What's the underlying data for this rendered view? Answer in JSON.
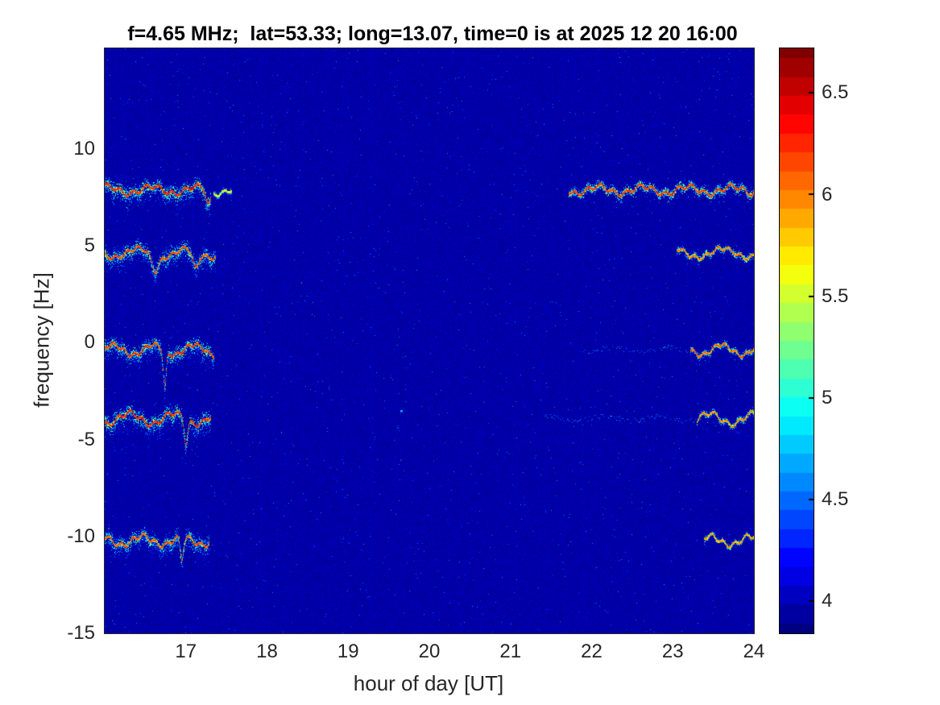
{
  "title": "f=4.65 MHz;  lat=53.33; long=13.07, time=0 is at 2025 12 20 16:00",
  "chart_data": {
    "type": "heatmap",
    "title": "f=4.65 MHz;  lat=53.33; long=13.07, time=0 is at 2025 12 20 16:00",
    "xlabel": "hour of day [UT]",
    "ylabel": "frequency [Hz]",
    "xlim": [
      16,
      24
    ],
    "ylim": [
      -15,
      15.2
    ],
    "x_ticks": [
      17,
      18,
      19,
      20,
      21,
      22,
      23,
      24
    ],
    "y_ticks": [
      10,
      5,
      0,
      -5,
      -10,
      -15
    ],
    "grid": false,
    "background_value": 3.95,
    "colorbar": {
      "position": "right",
      "colormap": "jet",
      "range": [
        3.84,
        6.72
      ],
      "ticks": [
        6.5,
        6,
        5.5,
        5,
        4.5,
        4
      ],
      "bands": 32
    },
    "traces": [
      {
        "label": "doppler-trace-plus8Hz",
        "base_freq": 7.9,
        "wiggle": {
          "a1": 0.2,
          "p1": 0.55,
          "ph1": 1.2,
          "a2": 0.12,
          "p2": 0.16,
          "ph2": 0.4
        },
        "dips": [
          {
            "t": 17.28,
            "depth": 0.7,
            "width": 0.04
          }
        ],
        "segments": [
          {
            "t0": 16.0,
            "t1": 17.3,
            "strength": 6.5,
            "spread": 0.55,
            "down_bias": 0.5
          },
          {
            "t0": 17.34,
            "t1": 17.56,
            "strength": 5.9,
            "spread": 0.3,
            "down_bias": 0.2
          },
          {
            "t0": 21.72,
            "t1": 24.0,
            "strength": 6.45,
            "spread": 0.35,
            "down_bias": 0.1
          }
        ]
      },
      {
        "label": "doppler-trace-plus4p6Hz",
        "base_freq": 4.65,
        "wiggle": {
          "a1": 0.25,
          "p1": 0.6,
          "ph1": 3.5,
          "a2": 0.1,
          "p2": 0.14,
          "ph2": 1.9
        },
        "dips": [
          {
            "t": 16.62,
            "depth": 0.8,
            "width": 0.06
          },
          {
            "t": 17.12,
            "depth": 0.9,
            "width": 0.05
          }
        ],
        "segments": [
          {
            "t0": 16.0,
            "t1": 17.36,
            "strength": 6.4,
            "spread": 0.6,
            "down_bias": 0.6
          },
          {
            "t0": 23.05,
            "t1": 24.0,
            "strength": 6.25,
            "spread": 0.25,
            "down_bias": 0.1
          }
        ]
      },
      {
        "label": "doppler-trace-0Hz",
        "base_freq": -0.35,
        "wiggle": {
          "a1": 0.28,
          "p1": 0.5,
          "ph1": 0.3,
          "a2": 0.1,
          "p2": 0.13,
          "ph2": 2.6
        },
        "dips": [
          {
            "t": 16.74,
            "depth": 1.9,
            "width": 0.025
          }
        ],
        "segments": [
          {
            "t0": 16.0,
            "t1": 17.34,
            "strength": 6.45,
            "spread": 0.55,
            "down_bias": 0.5
          },
          {
            "t0": 23.22,
            "t1": 24.0,
            "strength": 6.3,
            "spread": 0.25,
            "down_bias": 0.1
          }
        ],
        "faint_segments": [
          {
            "t0": 21.9,
            "t1": 23.2,
            "value": 4.5
          }
        ]
      },
      {
        "label": "doppler-trace-minus4Hz",
        "base_freq": -3.9,
        "wiggle": {
          "a1": 0.3,
          "p1": 0.55,
          "ph1": 4.4,
          "a2": 0.12,
          "p2": 0.15,
          "ph2": 0.9
        },
        "dips": [
          {
            "t": 17.0,
            "depth": 1.2,
            "width": 0.03
          }
        ],
        "segments": [
          {
            "t0": 16.0,
            "t1": 17.3,
            "strength": 6.5,
            "spread": 0.65,
            "down_bias": 0.6
          },
          {
            "t0": 23.3,
            "t1": 24.0,
            "strength": 6.2,
            "spread": 0.25,
            "down_bias": 0.1
          }
        ],
        "faint_segments": [
          {
            "t0": 21.4,
            "t1": 23.3,
            "value": 4.5
          }
        ]
      },
      {
        "label": "doppler-trace-minus10Hz",
        "base_freq": -10.2,
        "wiggle": {
          "a1": 0.25,
          "p1": 0.5,
          "ph1": 2.1,
          "a2": 0.12,
          "p2": 0.14,
          "ph2": 5.0
        },
        "dips": [
          {
            "t": 16.95,
            "depth": 1.2,
            "width": 0.03
          }
        ],
        "segments": [
          {
            "t0": 16.0,
            "t1": 17.28,
            "strength": 6.35,
            "spread": 0.6,
            "down_bias": 0.6
          },
          {
            "t0": 23.38,
            "t1": 24.0,
            "strength": 6.15,
            "spread": 0.2,
            "down_bias": 0.1
          }
        ]
      }
    ],
    "speckle_points": [
      {
        "t": 19.65,
        "f": -3.5,
        "v": 4.9
      }
    ],
    "colors": {
      "figure_background": "#ffffff",
      "axis_text": "#262626",
      "title_text": "#000000"
    }
  }
}
